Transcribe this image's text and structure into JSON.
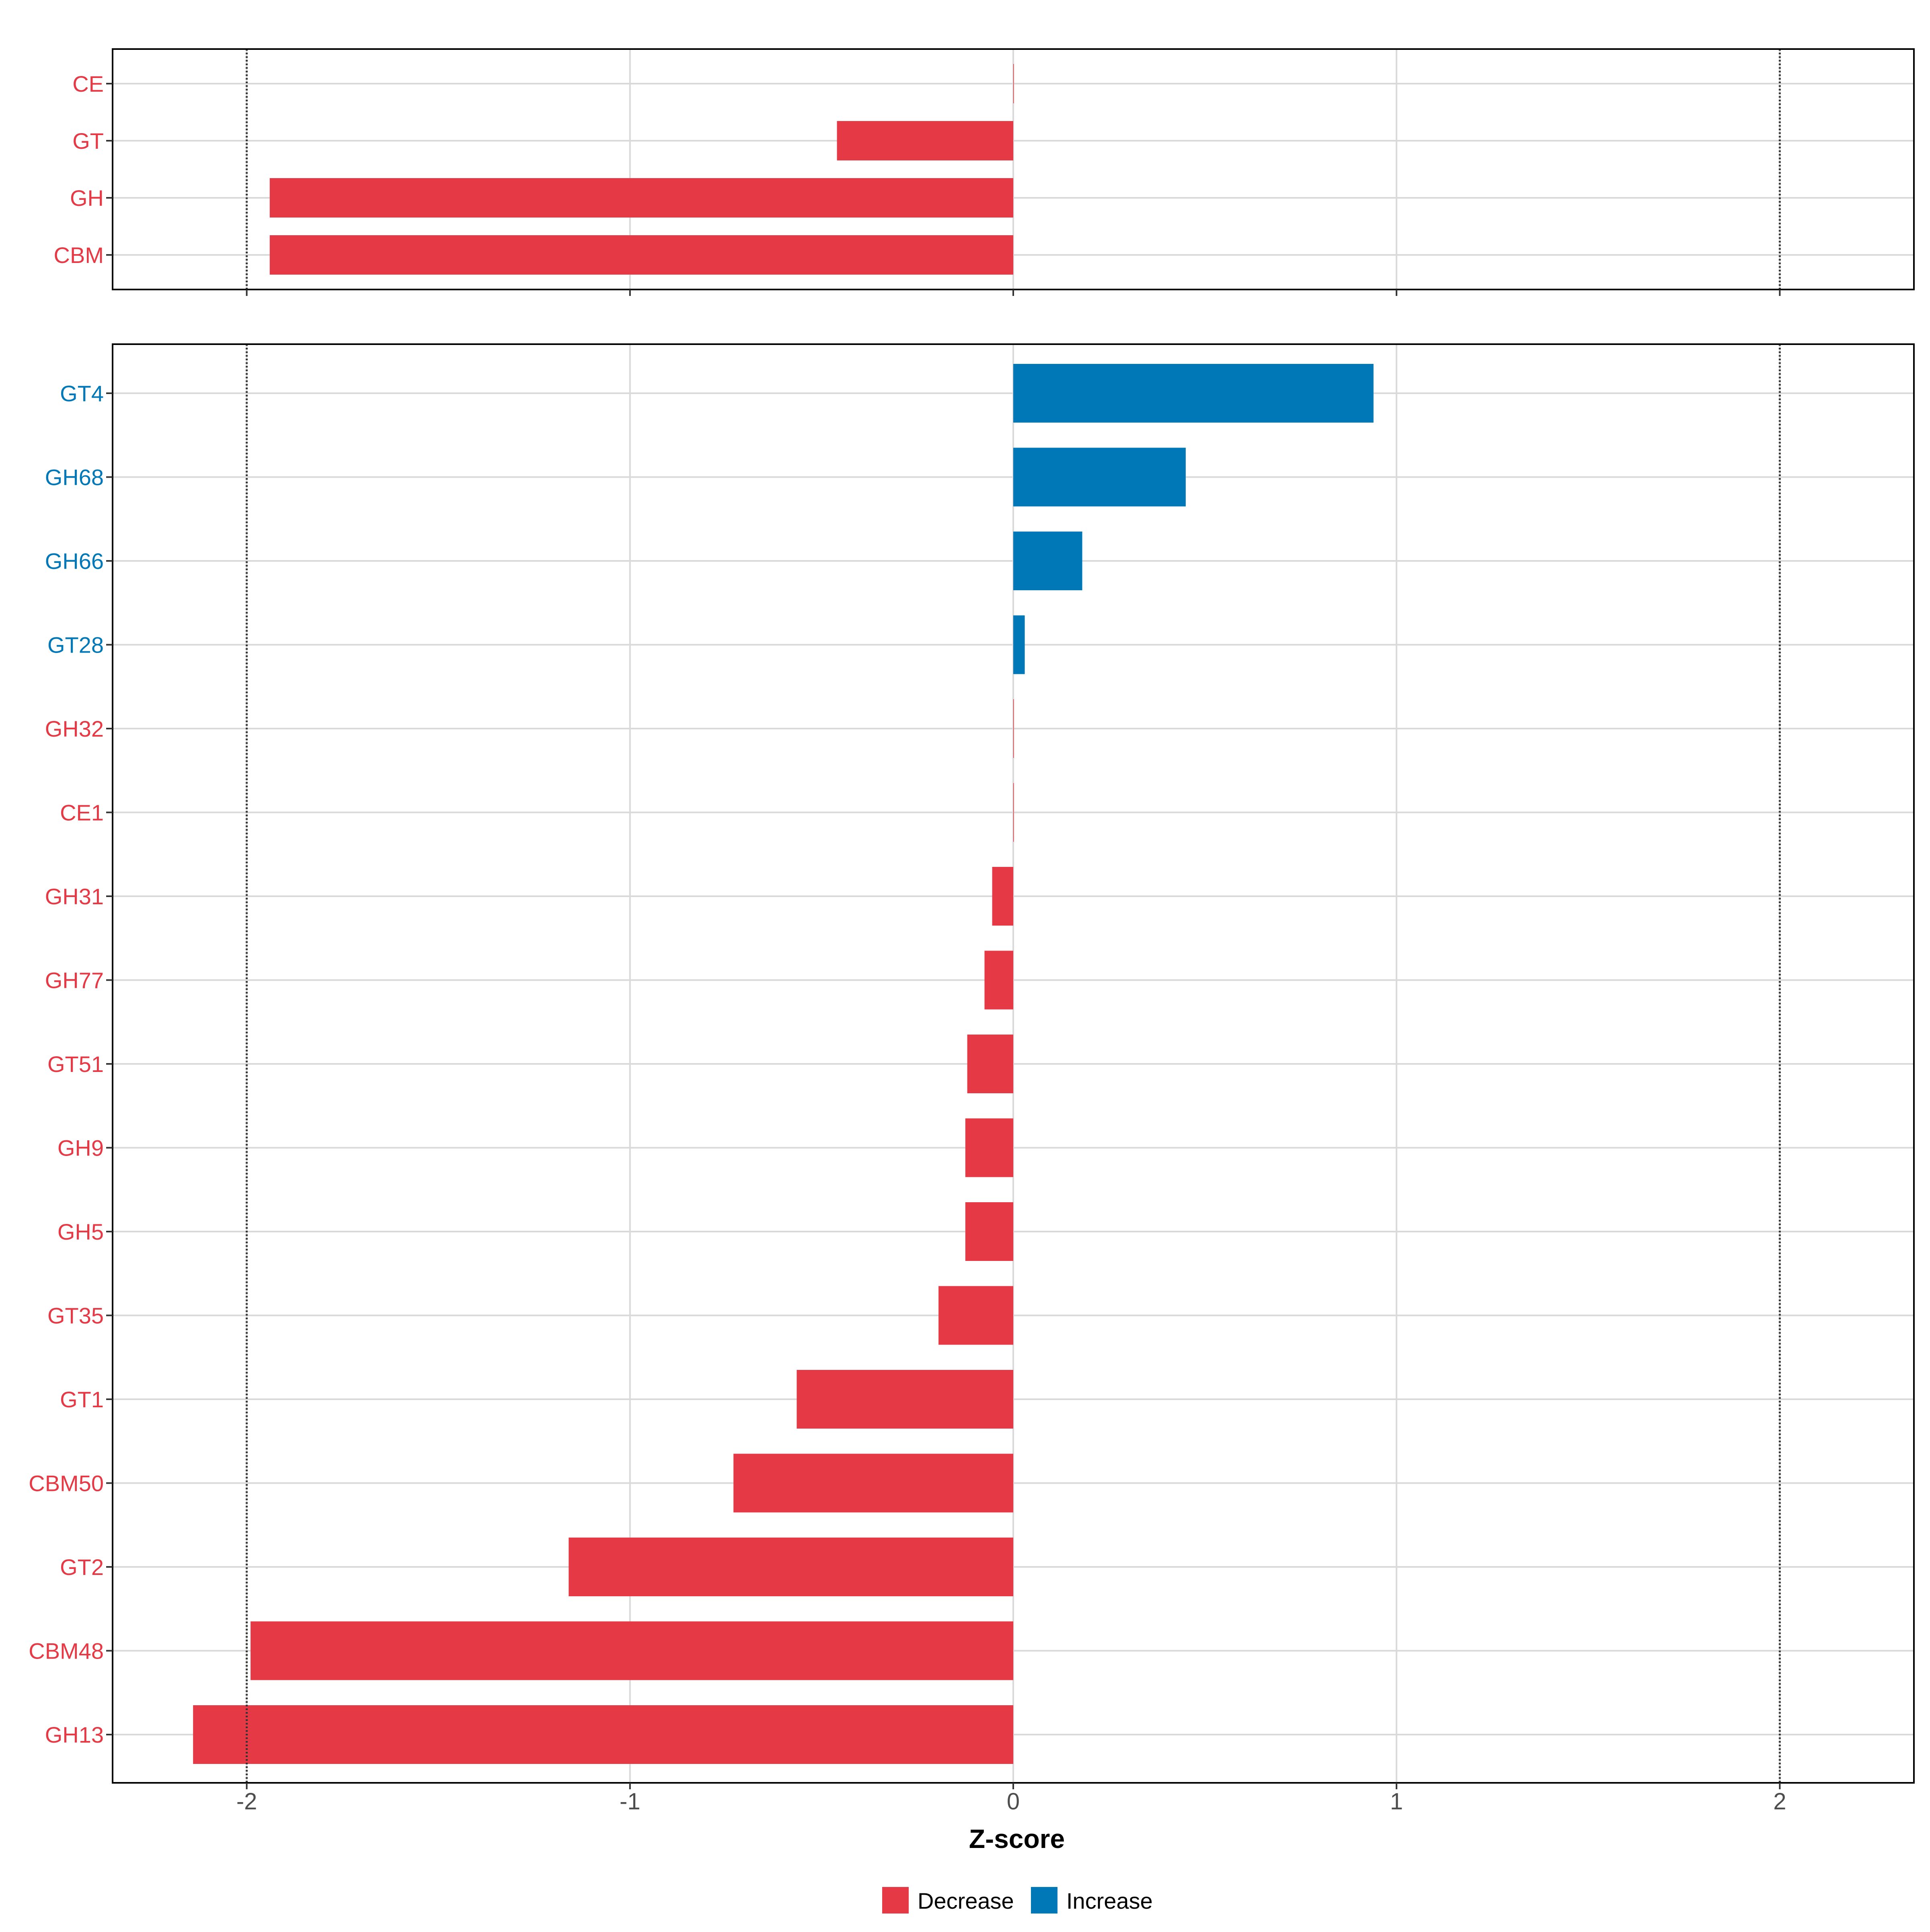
{
  "colors": {
    "decrease": "#E63946",
    "increase": "#0077B6",
    "grid": "#D9D9D9",
    "panel_border": "#000000",
    "threshold_line": "#333333",
    "axis_text": "#4D4D4D",
    "title_text": "#000000"
  },
  "chart_data": [
    {
      "type": "bar",
      "orientation": "horizontal",
      "panel": "top",
      "categories": [
        "CE",
        "GT",
        "GH",
        "CBM"
      ],
      "values": [
        0.0,
        -0.46,
        -1.94,
        -1.94
      ],
      "direction": [
        "Decrease",
        "Decrease",
        "Decrease",
        "Decrease"
      ],
      "xlim": [
        -2.35,
        2.35
      ],
      "xticks": [
        -2,
        -1,
        0,
        1,
        2
      ],
      "thresholds": [
        -2,
        2
      ],
      "grid": true,
      "show_x_tick_labels": false
    },
    {
      "type": "bar",
      "orientation": "horizontal",
      "panel": "bottom",
      "categories": [
        "GT4",
        "GH68",
        "GH66",
        "GT28",
        "GH32",
        "CE1",
        "GH31",
        "GH77",
        "GT51",
        "GH9",
        "GH5",
        "GT35",
        "GT1",
        "CBM50",
        "GT2",
        "CBM48",
        "GH13"
      ],
      "values": [
        0.94,
        0.45,
        0.18,
        0.03,
        0.0,
        0.0,
        -0.055,
        -0.075,
        -0.12,
        -0.125,
        -0.125,
        -0.195,
        -0.565,
        -0.73,
        -1.16,
        -1.99,
        -2.14
      ],
      "direction": [
        "Increase",
        "Increase",
        "Increase",
        "Increase",
        "Decrease",
        "Decrease",
        "Decrease",
        "Decrease",
        "Decrease",
        "Decrease",
        "Decrease",
        "Decrease",
        "Decrease",
        "Decrease",
        "Decrease",
        "Decrease",
        "Decrease"
      ],
      "xlim": [
        -2.35,
        2.35
      ],
      "xticks": [
        -2,
        -1,
        0,
        1,
        2
      ],
      "xtick_labels": [
        "-2",
        "-1",
        "0",
        "1",
        "2"
      ],
      "thresholds": [
        -2,
        2
      ],
      "grid": true,
      "xlabel": "Z-score",
      "show_x_tick_labels": true
    }
  ],
  "legend": {
    "placement": "bottom-center",
    "items": [
      {
        "label": "Decrease",
        "color_key": "decrease"
      },
      {
        "label": "Increase",
        "color_key": "increase"
      }
    ]
  }
}
